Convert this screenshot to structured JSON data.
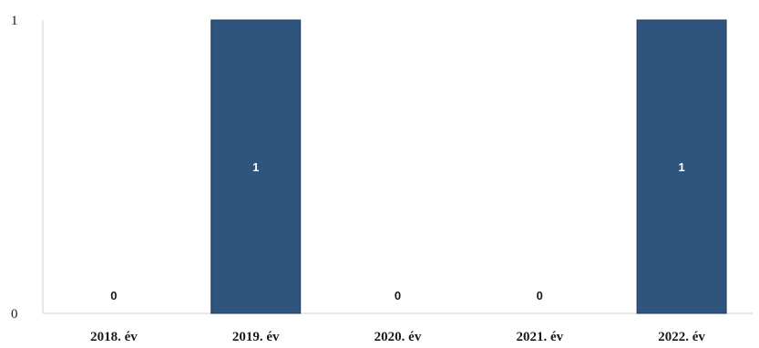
{
  "chart_data": {
    "type": "bar",
    "categories": [
      "2018. év",
      "2019. év",
      "2020. év",
      "2021. év",
      "2022. év"
    ],
    "values": [
      0,
      1,
      0,
      0,
      1
    ],
    "data_labels": [
      "0",
      "1",
      "0",
      "0",
      "1"
    ],
    "y_ticks": [
      "0",
      "1"
    ],
    "ylim": [
      0,
      1
    ],
    "title": "",
    "xlabel": "",
    "ylabel": "",
    "grid": false,
    "legend": "none",
    "colors": {
      "bar": "#2f557f",
      "bar_edge": "#1e3d5e",
      "zero_label": "#1a1a1a",
      "bar_label": "#ffffff",
      "axis": "#d0d0d0"
    }
  }
}
